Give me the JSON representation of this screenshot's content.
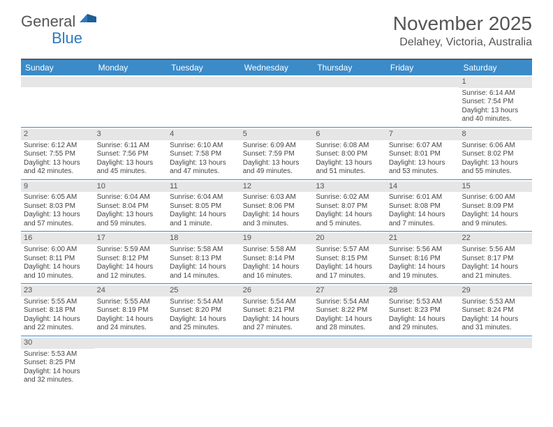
{
  "logo": {
    "part1": "General",
    "part2": "Blue"
  },
  "title": "November 2025",
  "location": "Delahey, Victoria, Australia",
  "colors": {
    "header_bg": "#3b8bc9",
    "bar_gray": "#e6e6e6",
    "rule": "#3b8bc9",
    "top_rule": "#5a5a5a",
    "logo_blue": "#2f7abf"
  },
  "day_headers": [
    "Sunday",
    "Monday",
    "Tuesday",
    "Wednesday",
    "Thursday",
    "Friday",
    "Saturday"
  ],
  "weeks": [
    [
      {
        "blank": true
      },
      {
        "blank": true
      },
      {
        "blank": true
      },
      {
        "blank": true
      },
      {
        "blank": true
      },
      {
        "blank": true
      },
      {
        "n": "1",
        "sr": "Sunrise: 6:14 AM",
        "ss": "Sunset: 7:54 PM",
        "d1": "Daylight: 13 hours",
        "d2": "and 40 minutes."
      }
    ],
    [
      {
        "n": "2",
        "sr": "Sunrise: 6:12 AM",
        "ss": "Sunset: 7:55 PM",
        "d1": "Daylight: 13 hours",
        "d2": "and 42 minutes."
      },
      {
        "n": "3",
        "sr": "Sunrise: 6:11 AM",
        "ss": "Sunset: 7:56 PM",
        "d1": "Daylight: 13 hours",
        "d2": "and 45 minutes."
      },
      {
        "n": "4",
        "sr": "Sunrise: 6:10 AM",
        "ss": "Sunset: 7:58 PM",
        "d1": "Daylight: 13 hours",
        "d2": "and 47 minutes."
      },
      {
        "n": "5",
        "sr": "Sunrise: 6:09 AM",
        "ss": "Sunset: 7:59 PM",
        "d1": "Daylight: 13 hours",
        "d2": "and 49 minutes."
      },
      {
        "n": "6",
        "sr": "Sunrise: 6:08 AM",
        "ss": "Sunset: 8:00 PM",
        "d1": "Daylight: 13 hours",
        "d2": "and 51 minutes."
      },
      {
        "n": "7",
        "sr": "Sunrise: 6:07 AM",
        "ss": "Sunset: 8:01 PM",
        "d1": "Daylight: 13 hours",
        "d2": "and 53 minutes."
      },
      {
        "n": "8",
        "sr": "Sunrise: 6:06 AM",
        "ss": "Sunset: 8:02 PM",
        "d1": "Daylight: 13 hours",
        "d2": "and 55 minutes."
      }
    ],
    [
      {
        "n": "9",
        "sr": "Sunrise: 6:05 AM",
        "ss": "Sunset: 8:03 PM",
        "d1": "Daylight: 13 hours",
        "d2": "and 57 minutes."
      },
      {
        "n": "10",
        "sr": "Sunrise: 6:04 AM",
        "ss": "Sunset: 8:04 PM",
        "d1": "Daylight: 13 hours",
        "d2": "and 59 minutes."
      },
      {
        "n": "11",
        "sr": "Sunrise: 6:04 AM",
        "ss": "Sunset: 8:05 PM",
        "d1": "Daylight: 14 hours",
        "d2": "and 1 minute."
      },
      {
        "n": "12",
        "sr": "Sunrise: 6:03 AM",
        "ss": "Sunset: 8:06 PM",
        "d1": "Daylight: 14 hours",
        "d2": "and 3 minutes."
      },
      {
        "n": "13",
        "sr": "Sunrise: 6:02 AM",
        "ss": "Sunset: 8:07 PM",
        "d1": "Daylight: 14 hours",
        "d2": "and 5 minutes."
      },
      {
        "n": "14",
        "sr": "Sunrise: 6:01 AM",
        "ss": "Sunset: 8:08 PM",
        "d1": "Daylight: 14 hours",
        "d2": "and 7 minutes."
      },
      {
        "n": "15",
        "sr": "Sunrise: 6:00 AM",
        "ss": "Sunset: 8:09 PM",
        "d1": "Daylight: 14 hours",
        "d2": "and 9 minutes."
      }
    ],
    [
      {
        "n": "16",
        "sr": "Sunrise: 6:00 AM",
        "ss": "Sunset: 8:11 PM",
        "d1": "Daylight: 14 hours",
        "d2": "and 10 minutes."
      },
      {
        "n": "17",
        "sr": "Sunrise: 5:59 AM",
        "ss": "Sunset: 8:12 PM",
        "d1": "Daylight: 14 hours",
        "d2": "and 12 minutes."
      },
      {
        "n": "18",
        "sr": "Sunrise: 5:58 AM",
        "ss": "Sunset: 8:13 PM",
        "d1": "Daylight: 14 hours",
        "d2": "and 14 minutes."
      },
      {
        "n": "19",
        "sr": "Sunrise: 5:58 AM",
        "ss": "Sunset: 8:14 PM",
        "d1": "Daylight: 14 hours",
        "d2": "and 16 minutes."
      },
      {
        "n": "20",
        "sr": "Sunrise: 5:57 AM",
        "ss": "Sunset: 8:15 PM",
        "d1": "Daylight: 14 hours",
        "d2": "and 17 minutes."
      },
      {
        "n": "21",
        "sr": "Sunrise: 5:56 AM",
        "ss": "Sunset: 8:16 PM",
        "d1": "Daylight: 14 hours",
        "d2": "and 19 minutes."
      },
      {
        "n": "22",
        "sr": "Sunrise: 5:56 AM",
        "ss": "Sunset: 8:17 PM",
        "d1": "Daylight: 14 hours",
        "d2": "and 21 minutes."
      }
    ],
    [
      {
        "n": "23",
        "sr": "Sunrise: 5:55 AM",
        "ss": "Sunset: 8:18 PM",
        "d1": "Daylight: 14 hours",
        "d2": "and 22 minutes."
      },
      {
        "n": "24",
        "sr": "Sunrise: 5:55 AM",
        "ss": "Sunset: 8:19 PM",
        "d1": "Daylight: 14 hours",
        "d2": "and 24 minutes."
      },
      {
        "n": "25",
        "sr": "Sunrise: 5:54 AM",
        "ss": "Sunset: 8:20 PM",
        "d1": "Daylight: 14 hours",
        "d2": "and 25 minutes."
      },
      {
        "n": "26",
        "sr": "Sunrise: 5:54 AM",
        "ss": "Sunset: 8:21 PM",
        "d1": "Daylight: 14 hours",
        "d2": "and 27 minutes."
      },
      {
        "n": "27",
        "sr": "Sunrise: 5:54 AM",
        "ss": "Sunset: 8:22 PM",
        "d1": "Daylight: 14 hours",
        "d2": "and 28 minutes."
      },
      {
        "n": "28",
        "sr": "Sunrise: 5:53 AM",
        "ss": "Sunset: 8:23 PM",
        "d1": "Daylight: 14 hours",
        "d2": "and 29 minutes."
      },
      {
        "n": "29",
        "sr": "Sunrise: 5:53 AM",
        "ss": "Sunset: 8:24 PM",
        "d1": "Daylight: 14 hours",
        "d2": "and 31 minutes."
      }
    ],
    [
      {
        "n": "30",
        "sr": "Sunrise: 5:53 AM",
        "ss": "Sunset: 8:25 PM",
        "d1": "Daylight: 14 hours",
        "d2": "and 32 minutes."
      },
      {
        "blank": true
      },
      {
        "blank": true
      },
      {
        "blank": true
      },
      {
        "blank": true
      },
      {
        "blank": true
      },
      {
        "blank": true
      }
    ]
  ]
}
